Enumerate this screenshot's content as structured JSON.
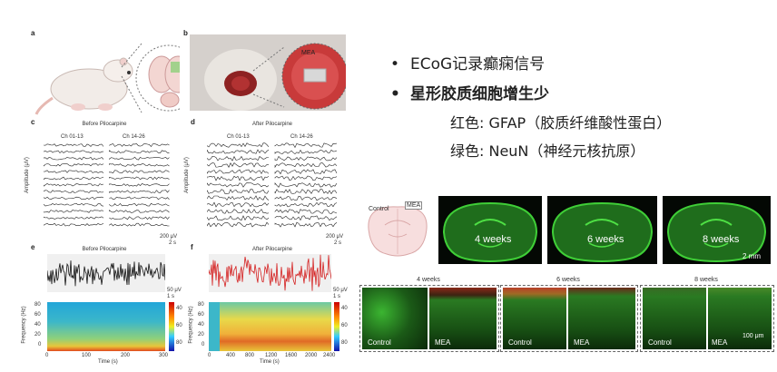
{
  "panels": {
    "a": "a",
    "b": "b",
    "c": "c",
    "d": "d",
    "e": "e",
    "f": "f"
  },
  "panel_b": {
    "mea_label": "MEA"
  },
  "panel_c": {
    "title": "Before Pilocarpine",
    "ch1": "Ch 01-13",
    "ch2": "Ch 14-26",
    "ylabel": "Amplitude (μV)",
    "scale_v": "200 μV",
    "scale_t": "2 s"
  },
  "panel_d": {
    "title": "After Pilocarpine",
    "ch1": "Ch 01-13",
    "ch2": "Ch 14-26",
    "ylabel": "Amplitude (μV)",
    "scale_v": "200 μV",
    "scale_t": "2 s"
  },
  "panel_e": {
    "title": "Before Pilocarpine",
    "scale_v": "50 μV",
    "scale_t": "1 s",
    "ylabel": "Frequency (Hz)",
    "xlabel": "Time (s)",
    "yticks": [
      "80",
      "60",
      "40",
      "20",
      "0"
    ],
    "xticks": [
      "0",
      "100",
      "200",
      "300"
    ],
    "cbar": [
      "40",
      "60",
      "80"
    ]
  },
  "panel_f": {
    "title": "After Pilocarpine",
    "scale_v": "50 μV",
    "scale_t": "1 s",
    "ylabel": "Frequency (Hz)",
    "xlabel": "Time (s)",
    "yticks": [
      "80",
      "60",
      "40",
      "20",
      "0"
    ],
    "xticks": [
      "0",
      "400",
      "800",
      "1200",
      "1600",
      "2000",
      "2400"
    ],
    "cbar": [
      "40",
      "60",
      "80"
    ]
  },
  "bullets": [
    {
      "text": "ECoG记录癫痫信号",
      "bold": false
    },
    {
      "text": "星形胶质细胞增生少",
      "bold": true
    }
  ],
  "lines": [
    "红色: GFAP（胶质纤维酸性蛋白）",
    "绿色: NeuN（神经元核抗原）"
  ],
  "histology": {
    "control_label": "Control",
    "mea_label": "MEA",
    "weeks": [
      "4 weeks",
      "6 weeks",
      "8 weeks"
    ],
    "scale_top": "2 mm",
    "bottom_panels": [
      {
        "week": "4 weeks",
        "left": "Control",
        "right": "MEA"
      },
      {
        "week": "6 weeks",
        "left": "Control",
        "right": "MEA"
      },
      {
        "week": "8 weeks",
        "left": "Control",
        "right": "MEA"
      }
    ],
    "scale_bottom": "100 μm"
  },
  "colors": {
    "red_trace": "#d42020",
    "black_trace": "#111111",
    "green_tissue": "#2fb52c",
    "gfap_red": "#d83a2a"
  }
}
